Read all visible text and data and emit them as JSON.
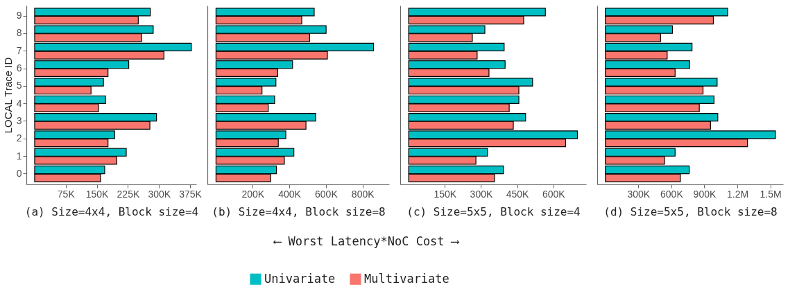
{
  "chart_data": [
    {
      "type": "bar",
      "orientation": "horizontal",
      "title": "(a) Size=4x4, Block size=4",
      "ylabel": "LOCAL Trace ID",
      "legend": "bottom",
      "categories": [
        "9",
        "8",
        "7",
        "6",
        "5",
        "4",
        "3",
        "2",
        "1",
        "0"
      ],
      "xlim": [
        -20000,
        390000
      ],
      "xticks": [
        {
          "value": 75000,
          "label": "75K"
        },
        {
          "value": 150000,
          "label": "150K"
        },
        {
          "value": 225000,
          "label": "225K"
        },
        {
          "value": 300000,
          "label": "300K"
        },
        {
          "value": 375000,
          "label": "375K"
        }
      ],
      "series": [
        {
          "name": "Univariate",
          "color": "#00bfc4",
          "values": [
            279000,
            286000,
            378000,
            227000,
            166000,
            171000,
            294000,
            193000,
            221000,
            169000
          ]
        },
        {
          "name": "Multivariate",
          "color": "#f8766d",
          "values": [
            250000,
            258000,
            312000,
            177000,
            136000,
            154000,
            278000,
            177000,
            198000,
            159000
          ]
        }
      ]
    },
    {
      "type": "bar",
      "orientation": "horizontal",
      "title": "(b) Size=4x4, Block size=8",
      "xlabel": "⟵ Worst Latency*NoC Cost ⟶",
      "tick_labels": "x",
      "categories": [
        "9",
        "8",
        "7",
        "6",
        "5",
        "4",
        "3",
        "2",
        "1",
        "0"
      ],
      "xlim": [
        -47000,
        945000
      ],
      "xticks": [
        {
          "value": 200000,
          "label": "200K"
        },
        {
          "value": 400000,
          "label": "400K"
        },
        {
          "value": 600000,
          "label": "600K"
        },
        {
          "value": 800000,
          "label": "800K"
        }
      ],
      "series": [
        {
          "name": "Univariate",
          "color": "#00bfc4",
          "values": [
            536000,
            601000,
            860000,
            418000,
            327000,
            320000,
            544000,
            381000,
            425000,
            330000
          ]
        },
        {
          "name": "Multivariate",
          "color": "#f8766d",
          "values": [
            468000,
            511000,
            608000,
            337000,
            251000,
            285000,
            491000,
            340000,
            373000,
            298000
          ]
        }
      ]
    },
    {
      "type": "bar",
      "orientation": "horizontal",
      "title": "(c) Size=5x5, Block size=4",
      "tick_labels": "x",
      "categories": [
        "9",
        "8",
        "7",
        "6",
        "5",
        "4",
        "3",
        "2",
        "1",
        "0"
      ],
      "xlim": [
        -35000,
        736000
      ],
      "xticks": [
        {
          "value": 150000,
          "label": "150K"
        },
        {
          "value": 300000,
          "label": "300K"
        },
        {
          "value": 450000,
          "label": "450K"
        },
        {
          "value": 600000,
          "label": "600K"
        }
      ],
      "series": [
        {
          "name": "Univariate",
          "color": "#00bfc4",
          "values": [
            567000,
            316000,
            396000,
            400000,
            514000,
            457000,
            485000,
            700000,
            327000,
            393000
          ]
        },
        {
          "name": "Multivariate",
          "color": "#f8766d",
          "values": [
            477000,
            264000,
            284000,
            333000,
            457000,
            417000,
            434000,
            651000,
            279000,
            356000
          ]
        }
      ]
    },
    {
      "type": "bar",
      "orientation": "horizontal",
      "title": "(d) Size=5x5, Block size=8",
      "tick_labels": "x",
      "categories": [
        "9",
        "8",
        "7",
        "6",
        "5",
        "4",
        "3",
        "2",
        "1",
        "0"
      ],
      "xlim": [
        -74000,
        1616000
      ],
      "xticks": [
        {
          "value": 300000,
          "label": "300K"
        },
        {
          "value": 600000,
          "label": "600K"
        },
        {
          "value": 900000,
          "label": "900K"
        },
        {
          "value": 1200000,
          "label": "1.2M"
        },
        {
          "value": 1500000,
          "label": "1.5M"
        }
      ],
      "series": [
        {
          "name": "Univariate",
          "color": "#00bfc4",
          "values": [
            1112000,
            610000,
            788000,
            766000,
            1016000,
            988000,
            1022000,
            1546000,
            634000,
            762000
          ]
        },
        {
          "name": "Multivariate",
          "color": "#f8766d",
          "values": [
            982000,
            502000,
            562000,
            634000,
            888000,
            854000,
            956000,
            1292000,
            538000,
            682000
          ]
        }
      ]
    }
  ]
}
